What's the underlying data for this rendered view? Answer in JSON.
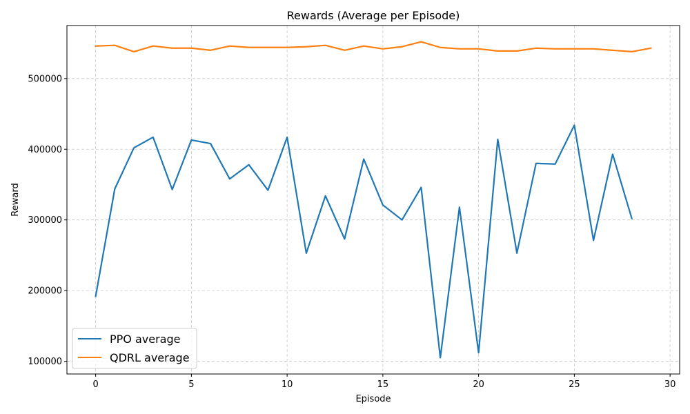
{
  "chart_data": {
    "type": "line",
    "title": "Rewards (Average per Episode)",
    "xlabel": "Episode",
    "ylabel": "Reward",
    "xlim": [
      -1.5,
      30.5
    ],
    "ylim": [
      82000,
      575000
    ],
    "xticks": [
      0,
      5,
      10,
      15,
      20,
      25,
      30
    ],
    "yticks": [
      100000,
      200000,
      300000,
      400000,
      500000
    ],
    "grid": true,
    "legend_position": "lower-left",
    "series": [
      {
        "name": "PPO average",
        "color": "#1f77b4",
        "x": [
          0,
          1,
          2,
          3,
          4,
          5,
          6,
          7,
          8,
          9,
          10,
          11,
          12,
          13,
          14,
          15,
          16,
          17,
          18,
          19,
          20,
          21,
          22,
          23,
          24,
          25,
          26,
          27,
          28
        ],
        "values": [
          192000,
          344000,
          402000,
          417000,
          343000,
          413000,
          408000,
          358000,
          378000,
          342000,
          417000,
          253000,
          334000,
          273000,
          386000,
          321000,
          300000,
          346000,
          105000,
          318000,
          112000,
          414000,
          253000,
          380000,
          379000,
          434000,
          271000,
          393000,
          302000
        ]
      },
      {
        "name": "QDRL average",
        "color": "#ff7f0e",
        "x": [
          0,
          1,
          2,
          3,
          4,
          5,
          6,
          7,
          8,
          9,
          10,
          11,
          12,
          13,
          14,
          15,
          16,
          17,
          18,
          19,
          20,
          21,
          22,
          23,
          24,
          25,
          26,
          27,
          28,
          29
        ],
        "values": [
          546000,
          547000,
          538000,
          546000,
          543000,
          543000,
          540000,
          546000,
          544000,
          544000,
          544000,
          545000,
          547000,
          540000,
          546000,
          542000,
          545000,
          552000,
          544000,
          542000,
          542000,
          539000,
          539000,
          543000,
          542000,
          542000,
          542000,
          540000,
          538000,
          543000
        ]
      }
    ]
  }
}
